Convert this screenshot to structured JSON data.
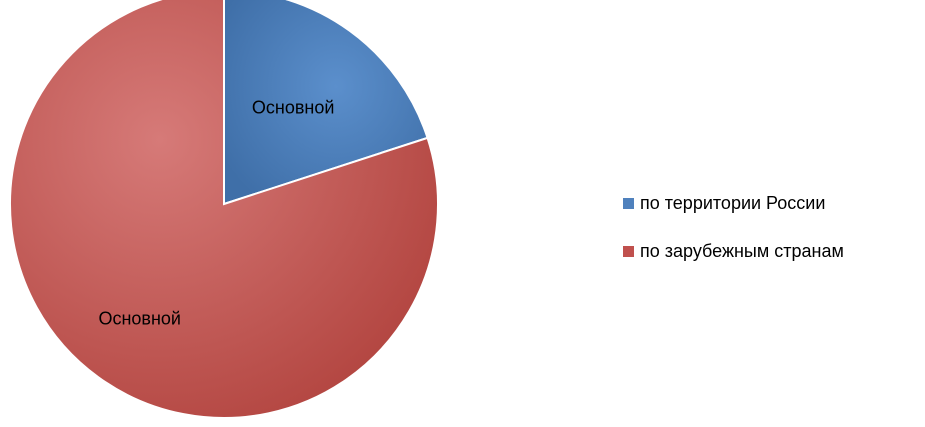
{
  "chart_data": {
    "type": "pie",
    "title": "",
    "categories": [
      "по территории России",
      "по зарубежным странам"
    ],
    "values": [
      20,
      80
    ],
    "colors": [
      "#4f81bd",
      "#c0504d"
    ],
    "data_labels": [
      "Основной",
      "Основной"
    ],
    "legend_position": "right"
  }
}
